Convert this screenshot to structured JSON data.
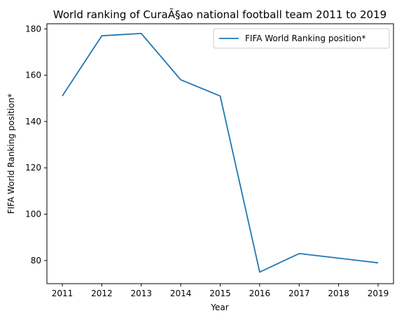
{
  "chart_data": {
    "type": "line",
    "title": "World ranking of CuraÃ§ao national football team 2011 to 2019",
    "xlabel": "Year",
    "ylabel": "FIFA World Ranking position*",
    "x": [
      "2011",
      "2012",
      "2013",
      "2014",
      "2015",
      "2016",
      "2017",
      "2018",
      "2019"
    ],
    "series": [
      {
        "name": "FIFA World Ranking position*",
        "color": "#1f77b4",
        "values": [
          151,
          177,
          178,
          158,
          151,
          75,
          83,
          81,
          79
        ]
      }
    ],
    "yticks": [
      80,
      100,
      120,
      140,
      160,
      180
    ],
    "ylim": [
      70,
      182.2
    ],
    "grid": false,
    "legend": "upper-right"
  }
}
